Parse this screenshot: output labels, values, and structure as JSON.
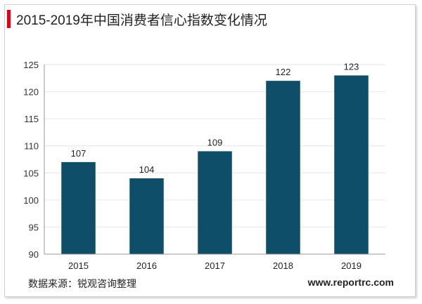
{
  "title": "2015-2019年中国消费者信心指数变化情况",
  "source_label": "数据来源：锐观咨询整理",
  "website": "www.reportrc.com",
  "colors": {
    "accent": "#e60012",
    "bar": "#0f4e68",
    "grid": "#e6e6e6",
    "axis": "#999999"
  },
  "chart_data": {
    "type": "bar",
    "title": "2015-2019年中国消费者信心指数变化情况",
    "xlabel": "",
    "ylabel": "",
    "categories": [
      "2015",
      "2016",
      "2017",
      "2018",
      "2019"
    ],
    "values": [
      107,
      104,
      109,
      122,
      123
    ],
    "data_labels": [
      "107",
      "104",
      "109",
      "122",
      "123"
    ],
    "ylim": [
      90,
      125
    ],
    "yticks": [
      90,
      95,
      100,
      105,
      110,
      115,
      120,
      125
    ],
    "grid": true,
    "legend": "none"
  }
}
